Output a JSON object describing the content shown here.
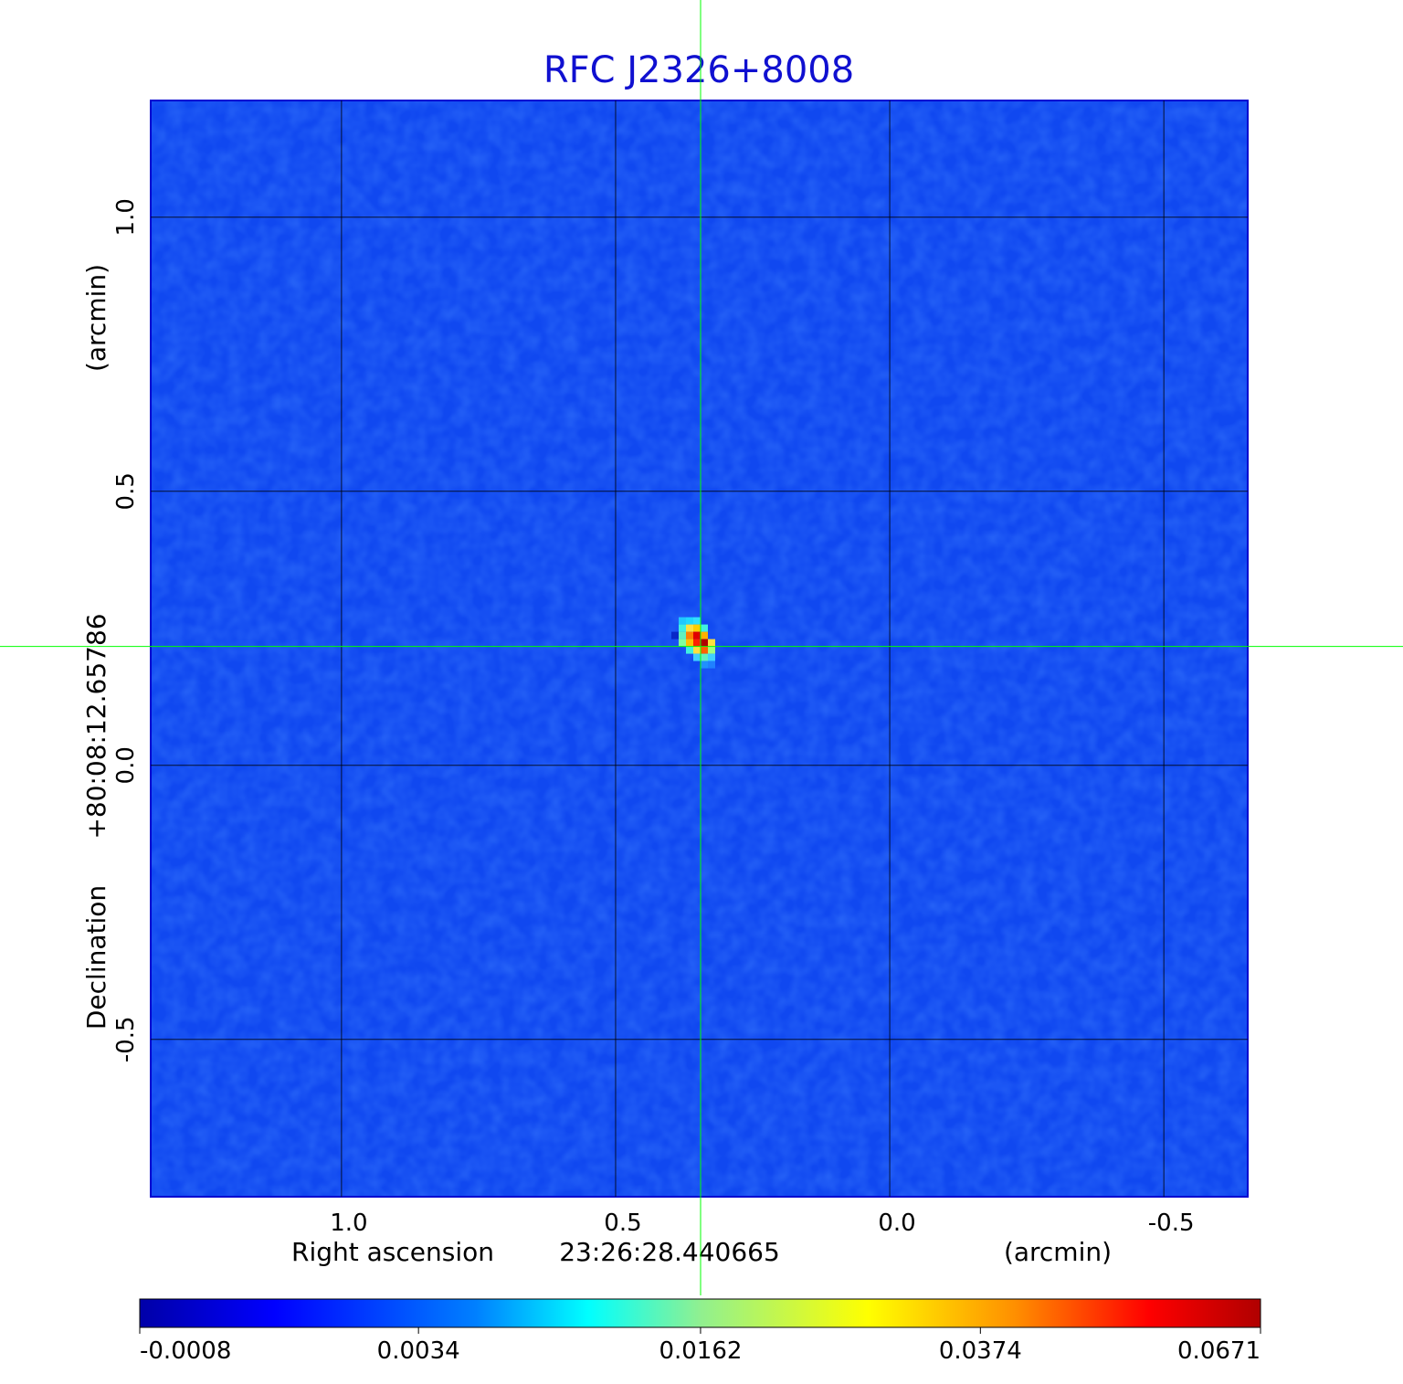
{
  "chart_data": {
    "type": "image",
    "title": "RFC J2326+8008",
    "xlabel": "Right ascension",
    "xcenter": "23:26:28.440665",
    "xunit": "(arcmin)",
    "ylabel": "Declination",
    "ycenter": "+80:08:12.65786",
    "yunit": "(arcmin)",
    "xlim": [
      1.348,
      -0.653
    ],
    "ylim": [
      -0.787,
      1.213
    ],
    "xticks": [
      {
        "value": 1,
        "label": "1.0"
      },
      0.5,
      {
        "value": 0,
        "label": "0.0"
      },
      -0.5
    ],
    "yticks": [
      {
        "value": 1,
        "label": "1.0"
      },
      0.5,
      {
        "value": 0,
        "label": "0.0"
      },
      -0.5
    ],
    "grid": true,
    "crosshair": {
      "x": 0.345,
      "y": 0.217,
      "color": "#00ff00"
    },
    "colorbar": {
      "scale": "sqrt",
      "lim": [
        -0.0008,
        0.0671
      ],
      "ticks": [
        -0.0008,
        0.0034,
        0.0162,
        0.0374,
        0.0671
      ]
    }
  }
}
